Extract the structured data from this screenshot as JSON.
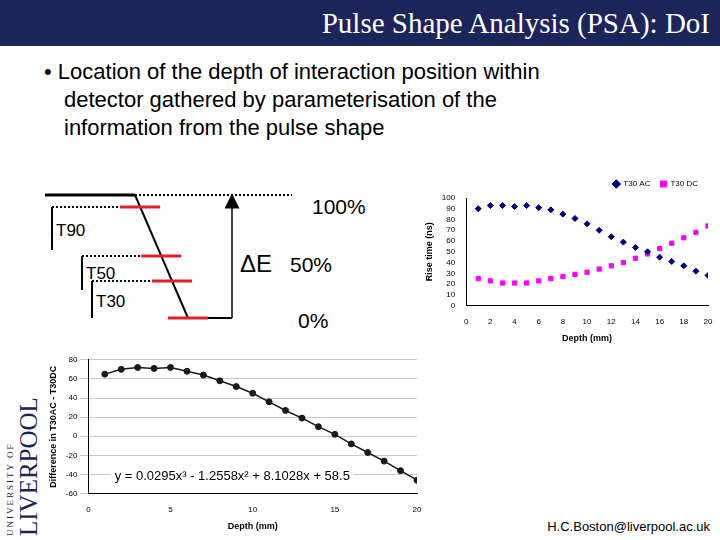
{
  "slide": {
    "title": "Pulse Shape Analysis (PSA): DoI",
    "bullet": [
      "• Location of the depth of interaction position within",
      "detector gathered by parameterisation of the",
      "information from the pulse shape"
    ],
    "diagram": {
      "times": [
        "T90",
        "T50",
        "T30"
      ],
      "energy": "ΔE",
      "levels": [
        "100%",
        "50%",
        "0%"
      ]
    },
    "logo": [
      "UNIVERSITY OF",
      "LIVERPOOL"
    ],
    "email": "H.C.Boston@liverpool.ac.uk"
  },
  "chart_data": [
    {
      "type": "scatter",
      "x_label": "Depth (mm)",
      "y_label": "Rise time (ns)",
      "x": [
        1,
        2,
        3,
        4,
        5,
        6,
        7,
        8,
        9,
        10,
        11,
        12,
        13,
        14,
        15,
        16,
        17,
        18,
        19,
        20
      ],
      "series": [
        {
          "name": "T30 AC",
          "color": "#000080",
          "marker": "diamond",
          "values": [
            90,
            93,
            93,
            92,
            93,
            91,
            89,
            85,
            81,
            76,
            70,
            64,
            59,
            54,
            50,
            45,
            41,
            37,
            32,
            28
          ]
        },
        {
          "name": "T30 DC",
          "color": "#ff00ff",
          "marker": "square",
          "values": [
            25,
            23,
            21,
            21,
            21,
            23,
            25,
            27,
            29,
            31,
            34,
            37,
            40,
            44,
            48,
            53,
            58,
            63,
            68,
            74
          ]
        }
      ],
      "xlim": [
        0,
        20
      ],
      "xticks": [
        0,
        2,
        4,
        6,
        8,
        10,
        12,
        14,
        16,
        18,
        20
      ],
      "ylim": [
        0,
        100
      ],
      "yticks": [
        0,
        10,
        20,
        30,
        40,
        50,
        60,
        70,
        80,
        90,
        100
      ],
      "grid": false,
      "legend": "upper right"
    },
    {
      "type": "line",
      "x_label": "Depth (mm)",
      "y_label": "Difference in T30AC - T30DC",
      "x": [
        1,
        2,
        3,
        4,
        5,
        6,
        7,
        8,
        9,
        10,
        11,
        12,
        13,
        14,
        15,
        16,
        17,
        18,
        19,
        20
      ],
      "values": [
        65,
        70,
        72,
        71,
        72,
        68,
        64,
        58,
        52,
        45,
        36,
        27,
        19,
        10,
        2,
        -8,
        -17,
        -26,
        -36,
        -46
      ],
      "color": "#1a1a1a",
      "marker": "circle",
      "line_style": "solid",
      "xlim": [
        0,
        20
      ],
      "xticks": [
        0,
        5,
        10,
        15,
        20
      ],
      "ylim": [
        -60,
        80
      ],
      "yticks": [
        -60,
        -40,
        -20,
        0,
        20,
        40,
        60,
        80
      ],
      "grid": "y",
      "annotations": [
        "y = 0.0295x³ - 1.2558x² + 8.1028x + 58.5"
      ]
    }
  ]
}
